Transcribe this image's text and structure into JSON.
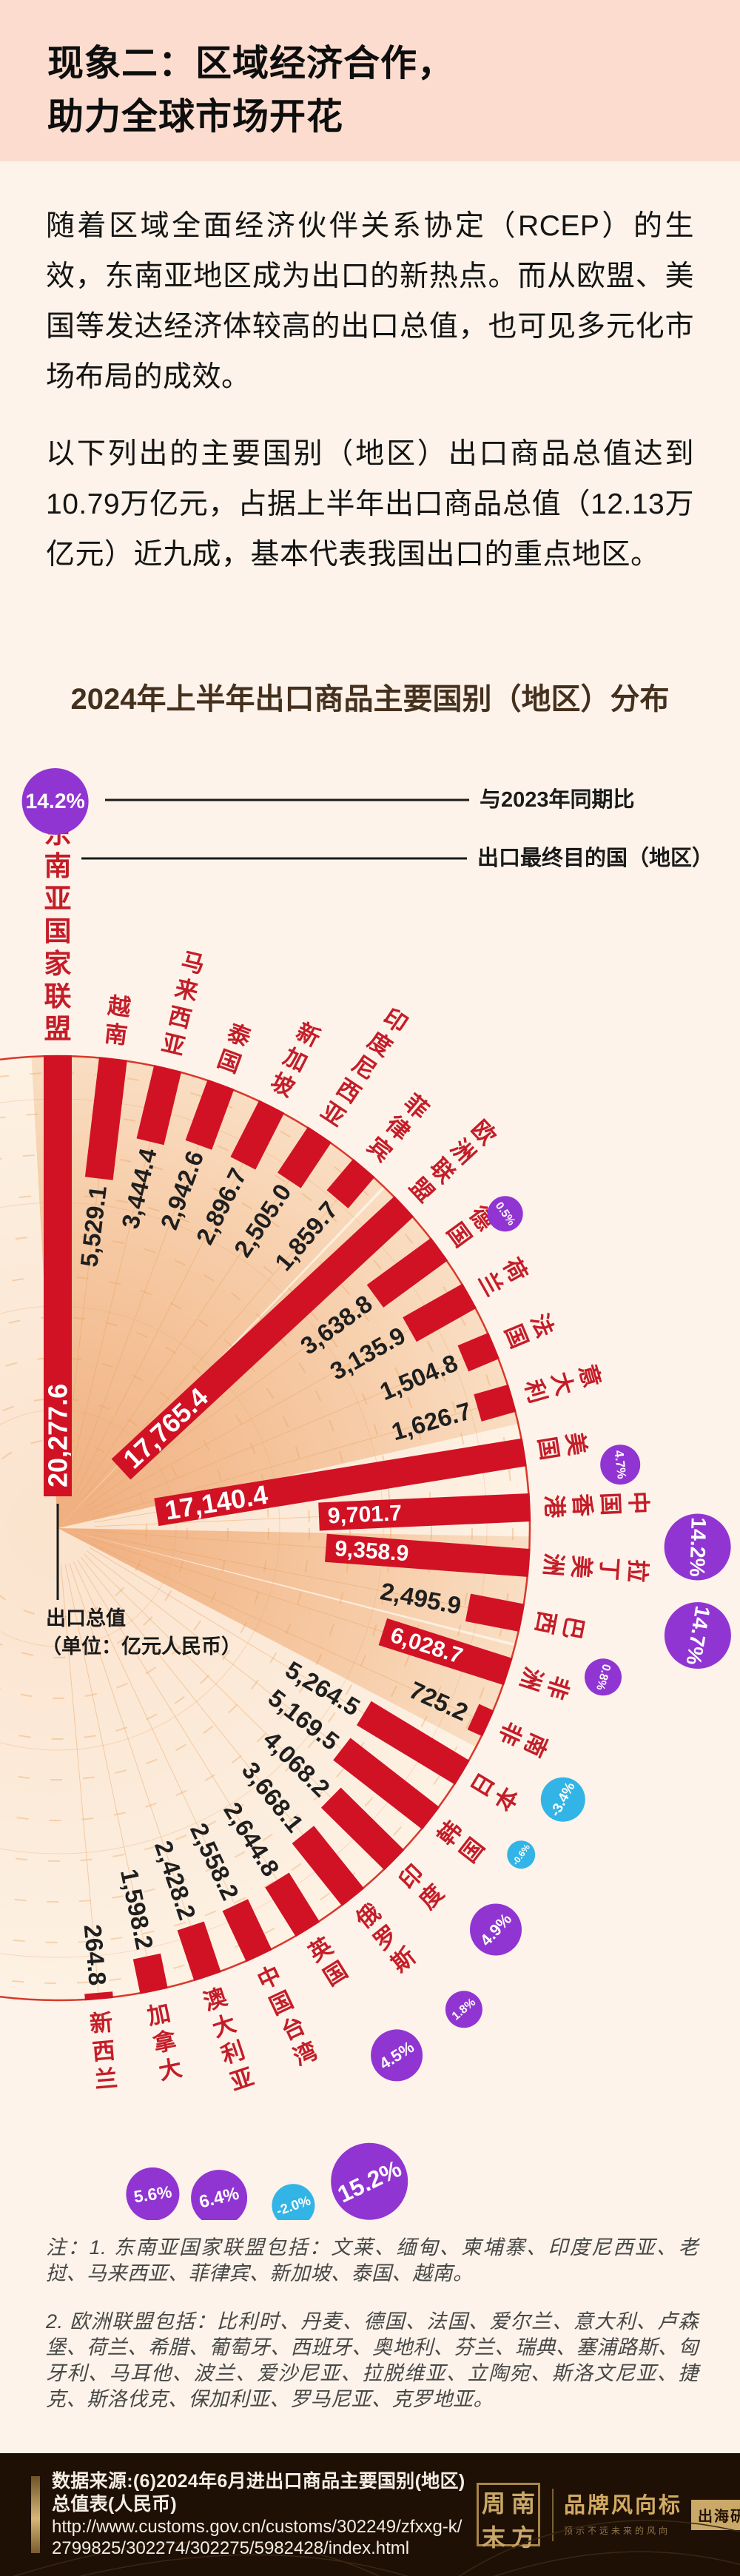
{
  "hero": {
    "title_line1": "现象二：区域经济合作，",
    "title_line2": "助力全球市场开花"
  },
  "intro": {
    "para1": "随着区域全面经济伙伴关系协定（RCEP）的生效，东南亚地区成为出口的新热点。而从欧盟、美国等发达经济体较高的出口总值，也可见多元化市场布局的成效。",
    "para2": "以下列出的主要国别（地区）出口商品总值达到10.79万亿元，占据上半年出口商品总值（12.13万亿元）近九成，基本代表我国出口的重点地区。"
  },
  "chart_data": {
    "type": "bar",
    "variant": "radial-fan",
    "title": "2024年上半年出口商品主要国别（地区）分布",
    "unit_note_line1": "出口总值",
    "unit_note_line2": "（单位：亿元人民币）",
    "legend": {
      "pct_sample": "14.2%",
      "pct_label": "与2023年同期比",
      "dest_label": "出口最终目的国（地区）"
    },
    "colors": {
      "bar": "#d11224",
      "label": "#c41d28",
      "up": "#9135d2",
      "down": "#32b4e6",
      "rim": "#d8392b",
      "grid": "#eaa25f",
      "value_text": "#1f1f1f"
    },
    "ylim": [
      0,
      20277.6
    ],
    "series": [
      {
        "name": "东南亚国家联盟",
        "value": 20277.6,
        "label": "20,277.6",
        "pct": "14.2%",
        "dir": "up",
        "group": "asean",
        "header": true,
        "inside": true,
        "pr": 45,
        "pd": 344,
        "pa": -0.2,
        "cs": 37
      },
      {
        "name": "越南",
        "value": 5529.1,
        "label": "5,529.1",
        "group": "asean"
      },
      {
        "name": "马来西亚",
        "value": 3444.4,
        "label": "3,444.4",
        "group": "asean"
      },
      {
        "name": "泰国",
        "value": 2942.6,
        "label": "2,942.6",
        "group": "asean"
      },
      {
        "name": "新加坡",
        "value": 2896.7,
        "label": "2,896.7",
        "group": "asean"
      },
      {
        "name": "印度尼西亚",
        "value": 2505.0,
        "label": "2,505.0",
        "group": "asean"
      },
      {
        "name": "菲律宾",
        "value": 1859.7,
        "label": "1,859.7",
        "group": "asean"
      },
      {
        "name": "欧洲联盟",
        "value": 17765.4,
        "label": "17,765.4",
        "pct": "0.5%",
        "dir": "up",
        "group": "eu",
        "header": true,
        "inside": true,
        "pr": 24,
        "pd": 101,
        "pa": 7.8
      },
      {
        "name": "德国",
        "value": 3638.8,
        "label": "3,638.8",
        "group": "eu"
      },
      {
        "name": "荷兰",
        "value": 3135.9,
        "label": "3,135.9",
        "group": "eu"
      },
      {
        "name": "法国",
        "value": 1504.8,
        "label": "1,504.8",
        "group": "eu"
      },
      {
        "name": "意大利",
        "value": 1626.7,
        "label": "1,626.7",
        "group": "eu"
      },
      {
        "name": "美国",
        "value": 17140.4,
        "label": "17,140.4",
        "pct": "4.7%",
        "dir": "up",
        "inside": true,
        "pr": 27,
        "pd": 127,
        "pa": 2.8
      },
      {
        "name": "中国香港",
        "value": 9701.7,
        "label": "9,701.7",
        "pct": "14.2%",
        "dir": "up",
        "inside": true,
        "pr": 45,
        "pd": 227,
        "pa": 4.2
      },
      {
        "name": "拉丁美洲",
        "value": 9358.9,
        "label": "9,358.9",
        "pct": "14.7%",
        "dir": "up",
        "group": "latam",
        "header": true,
        "inside": true,
        "pr": 45,
        "pd": 239,
        "pa": 5.3
      },
      {
        "name": "巴西",
        "value": 2495.9,
        "label": "2,495.9",
        "group": "latam"
      },
      {
        "name": "非洲",
        "value": 6028.7,
        "label": "6,028.7",
        "pct": "0.8%",
        "dir": "up",
        "group": "africa",
        "header": true,
        "inside": true,
        "pr": 25,
        "pd": 126,
        "pa": -2.4
      },
      {
        "name": "南非",
        "value": 725.2,
        "label": "725.2",
        "group": "africa"
      },
      {
        "name": "日本",
        "value": 5264.5,
        "label": "5,264.5",
        "pct": "-3.4%",
        "dir": "down",
        "pr": 30,
        "pd": 137,
        "pa": -2.9
      },
      {
        "name": "韩国",
        "value": 5169.5,
        "label": "5,169.5",
        "pct": "-0.6%",
        "dir": "down",
        "pr": 19,
        "pd": 128,
        "pa": -2.7
      },
      {
        "name": "印度",
        "value": 4068.2,
        "label": "4,068.2",
        "pct": "4.9%",
        "dir": "up",
        "pr": 35,
        "pd": 165,
        "pa": -2.1
      },
      {
        "name": "俄罗斯",
        "value": 3668.1,
        "label": "3,668.1",
        "pct": "1.8%",
        "dir": "up",
        "pr": 25,
        "pd": 213,
        "pa": -1.5
      },
      {
        "name": "英国",
        "value": 2644.8,
        "label": "2,644.8",
        "pct": "4.5%",
        "dir": "up",
        "pr": 35,
        "pd": 209,
        "pa": -0.8
      },
      {
        "name": "中国台湾",
        "value": 2558.2,
        "label": "2,558.2",
        "pct": "15.2%",
        "dir": "up",
        "pr": 52,
        "pd": 340,
        "pa": -0.3
      },
      {
        "name": "澳大利亚",
        "value": 2428.2,
        "label": "2,428.2",
        "pct": "-2.0%",
        "dir": "down",
        "pr": 29,
        "pd": 331,
        "pa": -0.7
      },
      {
        "name": "加拿大",
        "value": 1598.2,
        "label": "1,598.2",
        "pct": "6.4%",
        "dir": "up",
        "pr": 38,
        "pd": 293,
        "pa": -1.8
      },
      {
        "name": "新西兰",
        "value": 264.8,
        "label": "264.8",
        "pct": "5.6%",
        "dir": "up",
        "pr": 36,
        "pd": 271,
        "pa": -3.1
      }
    ]
  },
  "notes": {
    "note1": "注：1. 东南亚国家联盟包括：文莱、缅甸、柬埔寨、印度尼西亚、老挝、马来西亚、菲律宾、新加坡、泰国、越南。",
    "note2": "2. 欧洲联盟包括：比利时、丹麦、德国、法国、爱尔兰、意大利、卢森堡、荷兰、希腊、葡萄牙、西班牙、奥地利、芬兰、瑞典、塞浦路斯、匈牙利、马耳他、波兰、爱沙尼亚、拉脱维亚、立陶宛、斯洛文尼亚、捷克、斯洛伐克、保加利亚、罗马尼亚、克罗地亚。"
  },
  "footer": {
    "source_title": "数据来源:(6)2024年6月进出口商品主要国别(地区)总值表(人民币)",
    "source_url": "http://www.customs.gov.cn/customs/302249/zfxxg-k/2799825/302274/302275/5982428/index.html",
    "seal_chars": [
      "周",
      "南",
      "末",
      "方"
    ],
    "brand_name": "品牌风向标",
    "brand_sub": "预示不远未来的风向",
    "badge": "出海研报"
  }
}
